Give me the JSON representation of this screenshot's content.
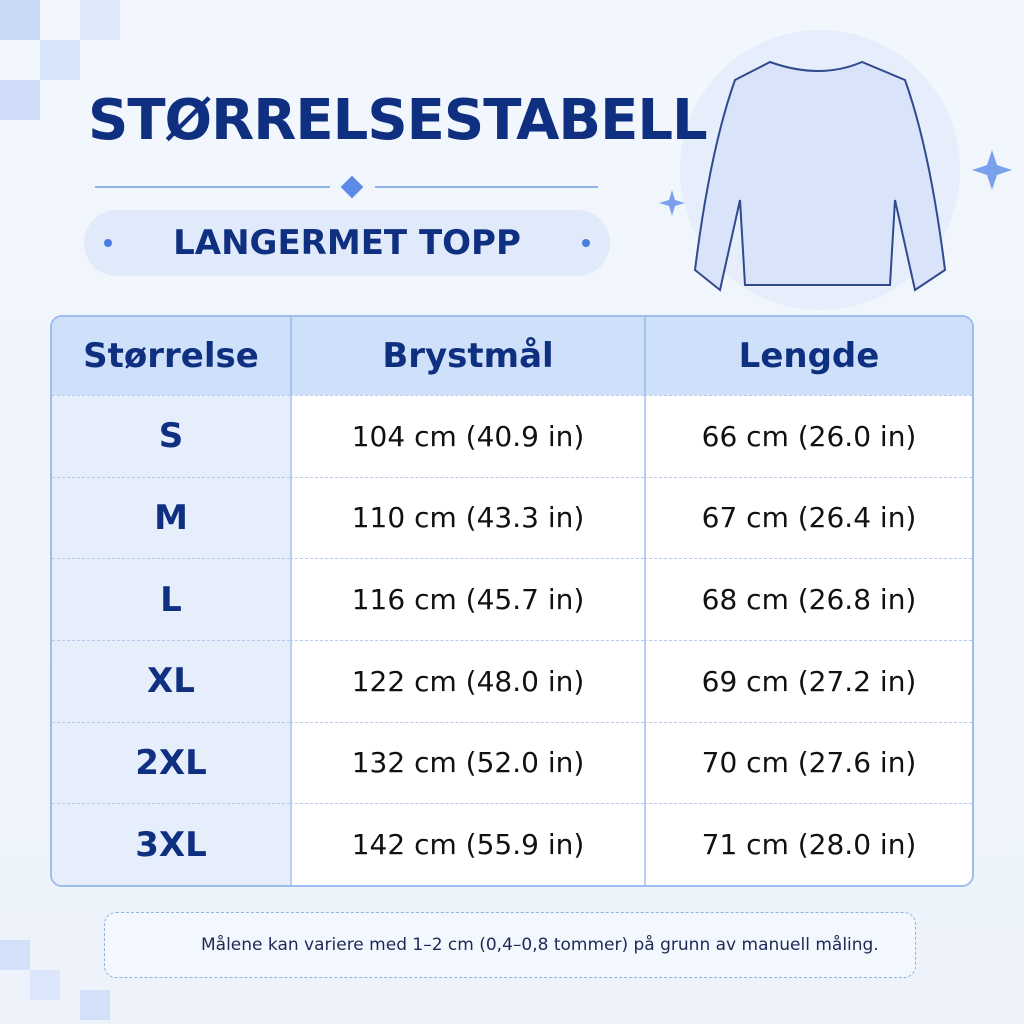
{
  "header": {
    "title": "STØRRELSESTABELL",
    "subtitle": "LANGERMET TOPP"
  },
  "table": {
    "columns": [
      "Størrelse",
      "Brystmål",
      "Lengde"
    ],
    "rows": [
      [
        "S",
        "104 cm (40.9 in)",
        "66 cm (26.0 in)"
      ],
      [
        "M",
        "110 cm (43.3 in)",
        "67 cm (26.4 in)"
      ],
      [
        "L",
        "116 cm (45.7 in)",
        "68 cm (26.8 in)"
      ],
      [
        "XL",
        "122 cm (48.0 in)",
        "69 cm (27.2 in)"
      ],
      [
        "2XL",
        "132 cm (52.0 in)",
        "70 cm (27.6 in)"
      ],
      [
        "3XL",
        "142 cm (55.9 in)",
        "71 cm (28.0 in)"
      ]
    ]
  },
  "note": "Målene kan variere med 1–2 cm (0,4–0,8 tommer) på grunn av manuell måling."
}
